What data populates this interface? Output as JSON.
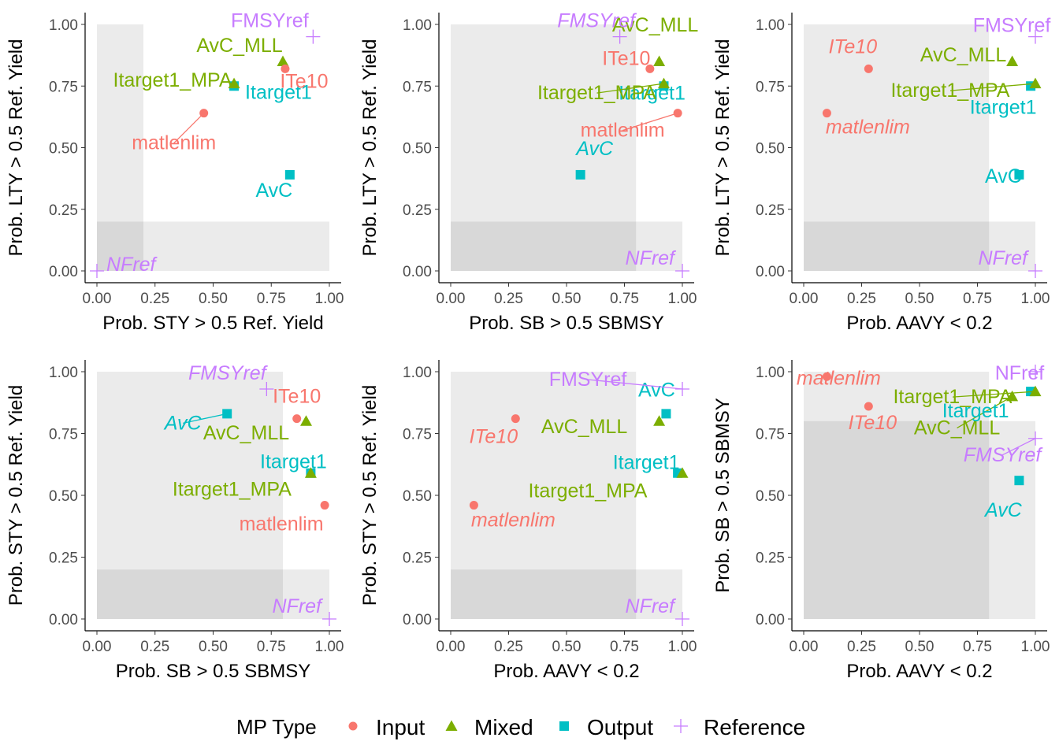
{
  "legend": {
    "title": "MP Type",
    "placement": "bottom",
    "items": [
      {
        "label": "Input",
        "color": "#F8766D",
        "shape": "circle"
      },
      {
        "label": "Mixed",
        "color": "#7CAE00",
        "shape": "triangle"
      },
      {
        "label": "Output",
        "color": "#00BFC4",
        "shape": "square"
      },
      {
        "label": "Reference",
        "color": "#C77CFF",
        "shape": "plus"
      }
    ]
  },
  "colors": {
    "Input": "#F8766D",
    "Mixed": "#7CAE00",
    "Output": "#00BFC4",
    "Reference": "#C77CFF"
  },
  "chart_data": [
    {
      "type": "scatter",
      "xlabel": "Prob. STY > 0.5 Ref. Yield",
      "ylabel": "Prob. LTY > 0.5 Ref. Yield",
      "xlim": [
        0,
        1
      ],
      "ylim": [
        0,
        1
      ],
      "xticks": [
        "0.00",
        "0.25",
        "0.50",
        "0.75",
        "1.00"
      ],
      "yticks": [
        "0.00",
        "0.25",
        "0.50",
        "0.75",
        "1.00"
      ],
      "shaded_limits": {
        "x": 0.2,
        "y": 0.2
      },
      "points": [
        {
          "mp": "AvC",
          "type": "Output",
          "x": 0.83,
          "y": 0.39,
          "italic": false
        },
        {
          "mp": "AvC_MLL",
          "type": "Mixed",
          "x": 0.8,
          "y": 0.85,
          "italic": false
        },
        {
          "mp": "FMSYref",
          "type": "Reference",
          "x": 0.93,
          "y": 0.95,
          "italic": false
        },
        {
          "mp": "Itarget1",
          "type": "Output",
          "x": 0.59,
          "y": 0.75,
          "italic": false
        },
        {
          "mp": "Itarget1_MPA",
          "type": "Mixed",
          "x": 0.59,
          "y": 0.76,
          "italic": false
        },
        {
          "mp": "ITe10",
          "type": "Input",
          "x": 0.81,
          "y": 0.82,
          "italic": false
        },
        {
          "mp": "matlenlim",
          "type": "Input",
          "x": 0.46,
          "y": 0.64,
          "italic": false
        },
        {
          "mp": "NFref",
          "type": "Reference",
          "x": 0.0,
          "y": 0.0,
          "italic": true
        }
      ]
    },
    {
      "type": "scatter",
      "xlabel": "Prob. SB > 0.5 SBMSY",
      "ylabel": "Prob. LTY > 0.5 Ref. Yield",
      "xlim": [
        0,
        1
      ],
      "ylim": [
        0,
        1
      ],
      "xticks": [
        "0.00",
        "0.25",
        "0.50",
        "0.75",
        "1.00"
      ],
      "yticks": [
        "0.00",
        "0.25",
        "0.50",
        "0.75",
        "1.00"
      ],
      "shaded_limits": {
        "x": 0.8,
        "y": 0.2
      },
      "points": [
        {
          "mp": "AvC",
          "type": "Output",
          "x": 0.56,
          "y": 0.39,
          "italic": true
        },
        {
          "mp": "AvC_MLL",
          "type": "Mixed",
          "x": 0.9,
          "y": 0.85,
          "italic": false
        },
        {
          "mp": "FMSYref",
          "type": "Reference",
          "x": 0.73,
          "y": 0.95,
          "italic": true
        },
        {
          "mp": "Itarget1",
          "type": "Output",
          "x": 0.92,
          "y": 0.75,
          "italic": false
        },
        {
          "mp": "Itarget1_MPA",
          "type": "Mixed",
          "x": 0.92,
          "y": 0.76,
          "italic": false
        },
        {
          "mp": "ITe10",
          "type": "Input",
          "x": 0.86,
          "y": 0.82,
          "italic": false
        },
        {
          "mp": "matlenlim",
          "type": "Input",
          "x": 0.98,
          "y": 0.64,
          "italic": false
        },
        {
          "mp": "NFref",
          "type": "Reference",
          "x": 1.0,
          "y": 0.0,
          "italic": true
        }
      ]
    },
    {
      "type": "scatter",
      "xlabel": "Prob. AAVY < 0.2",
      "ylabel": "Prob. LTY > 0.5 Ref. Yield",
      "xlim": [
        0,
        1
      ],
      "ylim": [
        0,
        1
      ],
      "xticks": [
        "0.00",
        "0.25",
        "0.50",
        "0.75",
        "1.00"
      ],
      "yticks": [
        "0.00",
        "0.25",
        "0.50",
        "0.75",
        "1.00"
      ],
      "shaded_limits": {
        "x": 0.8,
        "y": 0.2
      },
      "points": [
        {
          "mp": "AvC",
          "type": "Output",
          "x": 0.93,
          "y": 0.39,
          "italic": false
        },
        {
          "mp": "AvC_MLL",
          "type": "Mixed",
          "x": 0.9,
          "y": 0.85,
          "italic": false
        },
        {
          "mp": "FMSYref",
          "type": "Reference",
          "x": 1.0,
          "y": 0.95,
          "italic": false
        },
        {
          "mp": "Itarget1",
          "type": "Output",
          "x": 0.98,
          "y": 0.75,
          "italic": false
        },
        {
          "mp": "Itarget1_MPA",
          "type": "Mixed",
          "x": 1.0,
          "y": 0.76,
          "italic": false
        },
        {
          "mp": "ITe10",
          "type": "Input",
          "x": 0.28,
          "y": 0.82,
          "italic": true
        },
        {
          "mp": "matlenlim",
          "type": "Input",
          "x": 0.1,
          "y": 0.64,
          "italic": true
        },
        {
          "mp": "NFref",
          "type": "Reference",
          "x": 1.0,
          "y": 0.0,
          "italic": true
        }
      ]
    },
    {
      "type": "scatter",
      "xlabel": "Prob. SB > 0.5 SBMSY",
      "ylabel": "Prob. STY > 0.5 Ref. Yield",
      "xlim": [
        0,
        1
      ],
      "ylim": [
        0,
        1
      ],
      "xticks": [
        "0.00",
        "0.25",
        "0.50",
        "0.75",
        "1.00"
      ],
      "yticks": [
        "0.00",
        "0.25",
        "0.50",
        "0.75",
        "1.00"
      ],
      "shaded_limits": {
        "x": 0.8,
        "y": 0.2
      },
      "points": [
        {
          "mp": "AvC",
          "type": "Output",
          "x": 0.56,
          "y": 0.83,
          "italic": true
        },
        {
          "mp": "AvC_MLL",
          "type": "Mixed",
          "x": 0.9,
          "y": 0.8,
          "italic": false
        },
        {
          "mp": "FMSYref",
          "type": "Reference",
          "x": 0.73,
          "y": 0.93,
          "italic": true
        },
        {
          "mp": "Itarget1",
          "type": "Output",
          "x": 0.92,
          "y": 0.59,
          "italic": false
        },
        {
          "mp": "Itarget1_MPA",
          "type": "Mixed",
          "x": 0.92,
          "y": 0.59,
          "italic": false
        },
        {
          "mp": "ITe10",
          "type": "Input",
          "x": 0.86,
          "y": 0.81,
          "italic": false
        },
        {
          "mp": "matlenlim",
          "type": "Input",
          "x": 0.98,
          "y": 0.46,
          "italic": false
        },
        {
          "mp": "NFref",
          "type": "Reference",
          "x": 1.0,
          "y": 0.0,
          "italic": true
        }
      ]
    },
    {
      "type": "scatter",
      "xlabel": "Prob. AAVY < 0.2",
      "ylabel": "Prob. STY > 0.5 Ref. Yield",
      "xlim": [
        0,
        1
      ],
      "ylim": [
        0,
        1
      ],
      "xticks": [
        "0.00",
        "0.25",
        "0.50",
        "0.75",
        "1.00"
      ],
      "yticks": [
        "0.00",
        "0.25",
        "0.50",
        "0.75",
        "1.00"
      ],
      "shaded_limits": {
        "x": 0.8,
        "y": 0.2
      },
      "points": [
        {
          "mp": "AvC",
          "type": "Output",
          "x": 0.93,
          "y": 0.83,
          "italic": false
        },
        {
          "mp": "AvC_MLL",
          "type": "Mixed",
          "x": 0.9,
          "y": 0.8,
          "italic": false
        },
        {
          "mp": "FMSYref",
          "type": "Reference",
          "x": 1.0,
          "y": 0.93,
          "italic": false
        },
        {
          "mp": "Itarget1",
          "type": "Output",
          "x": 0.98,
          "y": 0.59,
          "italic": false
        },
        {
          "mp": "Itarget1_MPA",
          "type": "Mixed",
          "x": 1.0,
          "y": 0.59,
          "italic": false
        },
        {
          "mp": "ITe10",
          "type": "Input",
          "x": 0.28,
          "y": 0.81,
          "italic": true
        },
        {
          "mp": "matlenlim",
          "type": "Input",
          "x": 0.1,
          "y": 0.46,
          "italic": true
        },
        {
          "mp": "NFref",
          "type": "Reference",
          "x": 1.0,
          "y": 0.0,
          "italic": true
        }
      ]
    },
    {
      "type": "scatter",
      "xlabel": "Prob. AAVY < 0.2",
      "ylabel": "Prob. SB > 0.5 SBMSY",
      "xlim": [
        0,
        1
      ],
      "ylim": [
        0,
        1
      ],
      "xticks": [
        "0.00",
        "0.25",
        "0.50",
        "0.75",
        "1.00"
      ],
      "yticks": [
        "0.00",
        "0.25",
        "0.50",
        "0.75",
        "1.00"
      ],
      "shaded_limits": {
        "x": 0.8,
        "y": 0.8
      },
      "points": [
        {
          "mp": "AvC",
          "type": "Output",
          "x": 0.93,
          "y": 0.56,
          "italic": true
        },
        {
          "mp": "AvC_MLL",
          "type": "Mixed",
          "x": 0.9,
          "y": 0.9,
          "italic": false
        },
        {
          "mp": "FMSYref",
          "type": "Reference",
          "x": 1.0,
          "y": 0.73,
          "italic": true
        },
        {
          "mp": "Itarget1",
          "type": "Output",
          "x": 0.98,
          "y": 0.92,
          "italic": false
        },
        {
          "mp": "Itarget1_MPA",
          "type": "Mixed",
          "x": 1.0,
          "y": 0.92,
          "italic": false
        },
        {
          "mp": "ITe10",
          "type": "Input",
          "x": 0.28,
          "y": 0.86,
          "italic": true
        },
        {
          "mp": "matlenlim",
          "type": "Input",
          "x": 0.1,
          "y": 0.98,
          "italic": true
        },
        {
          "mp": "NFref",
          "type": "Reference",
          "x": 1.0,
          "y": 1.0,
          "italic": false
        }
      ]
    }
  ]
}
